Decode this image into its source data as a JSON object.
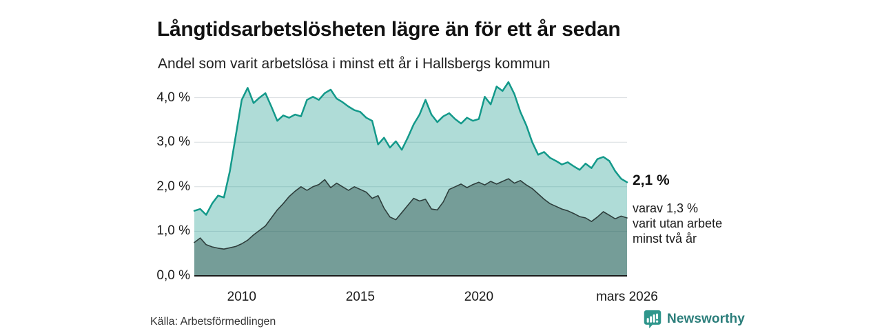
{
  "header": {
    "title": "Långtidsarbetslösheten lägre än för ett år sedan",
    "subtitle": "Andel som varit arbetslösa i minst ett år i Hallsbergs kommun"
  },
  "colors": {
    "accent": "#13998a",
    "accent_fill": "rgba(26,155,140,0.35)",
    "dark_series": "#2e3e3c",
    "dark_fill": "rgba(38,68,65,0.42)",
    "gridline": "#d9dde0",
    "axis": "#1a1a1a",
    "brand": "#2a7d7a",
    "brand_icon": "#2f968c"
  },
  "chart_data": {
    "type": "area",
    "title": "Långtidsarbetslösheten lägre än för ett år sedan",
    "subtitle": "Andel som varit arbetslösa i minst ett år i Hallsbergs kommun",
    "xlabel": "",
    "ylabel": "",
    "xlim": [
      2008,
      2026.25
    ],
    "ylim": [
      0,
      4.5
    ],
    "grid": true,
    "legend_position": "none",
    "y_ticks": [
      {
        "label": "0,0 %",
        "value": 0
      },
      {
        "label": "1,0 %",
        "value": 1
      },
      {
        "label": "2,0 %",
        "value": 2
      },
      {
        "label": "3,0 %",
        "value": 3
      },
      {
        "label": "4,0 %",
        "value": 4
      }
    ],
    "x_ticks": [
      {
        "label": "2010",
        "year": 2010
      },
      {
        "label": "2015",
        "year": 2015
      },
      {
        "label": "2020",
        "year": 2020
      },
      {
        "label": "mars 2026",
        "year": 2026.25
      }
    ],
    "series": [
      {
        "name": "Andel arbetslösa minst ett år (totalt)",
        "end_label": "2,1 %",
        "x_start": 2008,
        "x_step": 0.25,
        "values": [
          1.46,
          1.5,
          1.37,
          1.62,
          1.8,
          1.76,
          2.35,
          3.15,
          3.95,
          4.22,
          3.88,
          4.0,
          4.1,
          3.8,
          3.48,
          3.6,
          3.55,
          3.62,
          3.58,
          3.95,
          4.02,
          3.95,
          4.1,
          4.18,
          3.98,
          3.9,
          3.8,
          3.72,
          3.68,
          3.55,
          3.48,
          2.95,
          3.1,
          2.88,
          3.02,
          2.83,
          3.1,
          3.4,
          3.62,
          3.95,
          3.62,
          3.45,
          3.58,
          3.65,
          3.52,
          3.42,
          3.55,
          3.48,
          3.52,
          4.02,
          3.85,
          4.25,
          4.15,
          4.35,
          4.08,
          3.68,
          3.38,
          3.0,
          2.72,
          2.78,
          2.65,
          2.58,
          2.5,
          2.55,
          2.46,
          2.38,
          2.52,
          2.42,
          2.62,
          2.67,
          2.58,
          2.35,
          2.18,
          2.1
        ]
      },
      {
        "name": "Varav utan arbete minst två år",
        "end_label": "1,3 %",
        "x_start": 2008,
        "x_step": 0.25,
        "values": [
          0.75,
          0.85,
          0.7,
          0.65,
          0.62,
          0.6,
          0.63,
          0.66,
          0.72,
          0.8,
          0.92,
          1.02,
          1.12,
          1.3,
          1.48,
          1.62,
          1.78,
          1.9,
          2.0,
          1.92,
          2.0,
          2.05,
          2.16,
          1.98,
          2.08,
          2.0,
          1.92,
          2.0,
          1.94,
          1.88,
          1.74,
          1.8,
          1.52,
          1.32,
          1.26,
          1.42,
          1.58,
          1.74,
          1.68,
          1.72,
          1.5,
          1.48,
          1.66,
          1.94,
          2.0,
          2.06,
          1.98,
          2.05,
          2.1,
          2.04,
          2.12,
          2.06,
          2.12,
          2.18,
          2.08,
          2.14,
          2.04,
          1.96,
          1.84,
          1.72,
          1.62,
          1.56,
          1.5,
          1.46,
          1.4,
          1.33,
          1.3,
          1.22,
          1.32,
          1.44,
          1.36,
          1.28,
          1.34,
          1.3
        ]
      }
    ]
  },
  "annotation": {
    "value": "2,1 %",
    "sub_line1": "varav 1,3 %",
    "sub_line2": "varit utan arbete",
    "sub_line3": "minst två år"
  },
  "footer": {
    "source": "Källa: Arbetsförmedlingen",
    "brand": "Newsworthy"
  }
}
